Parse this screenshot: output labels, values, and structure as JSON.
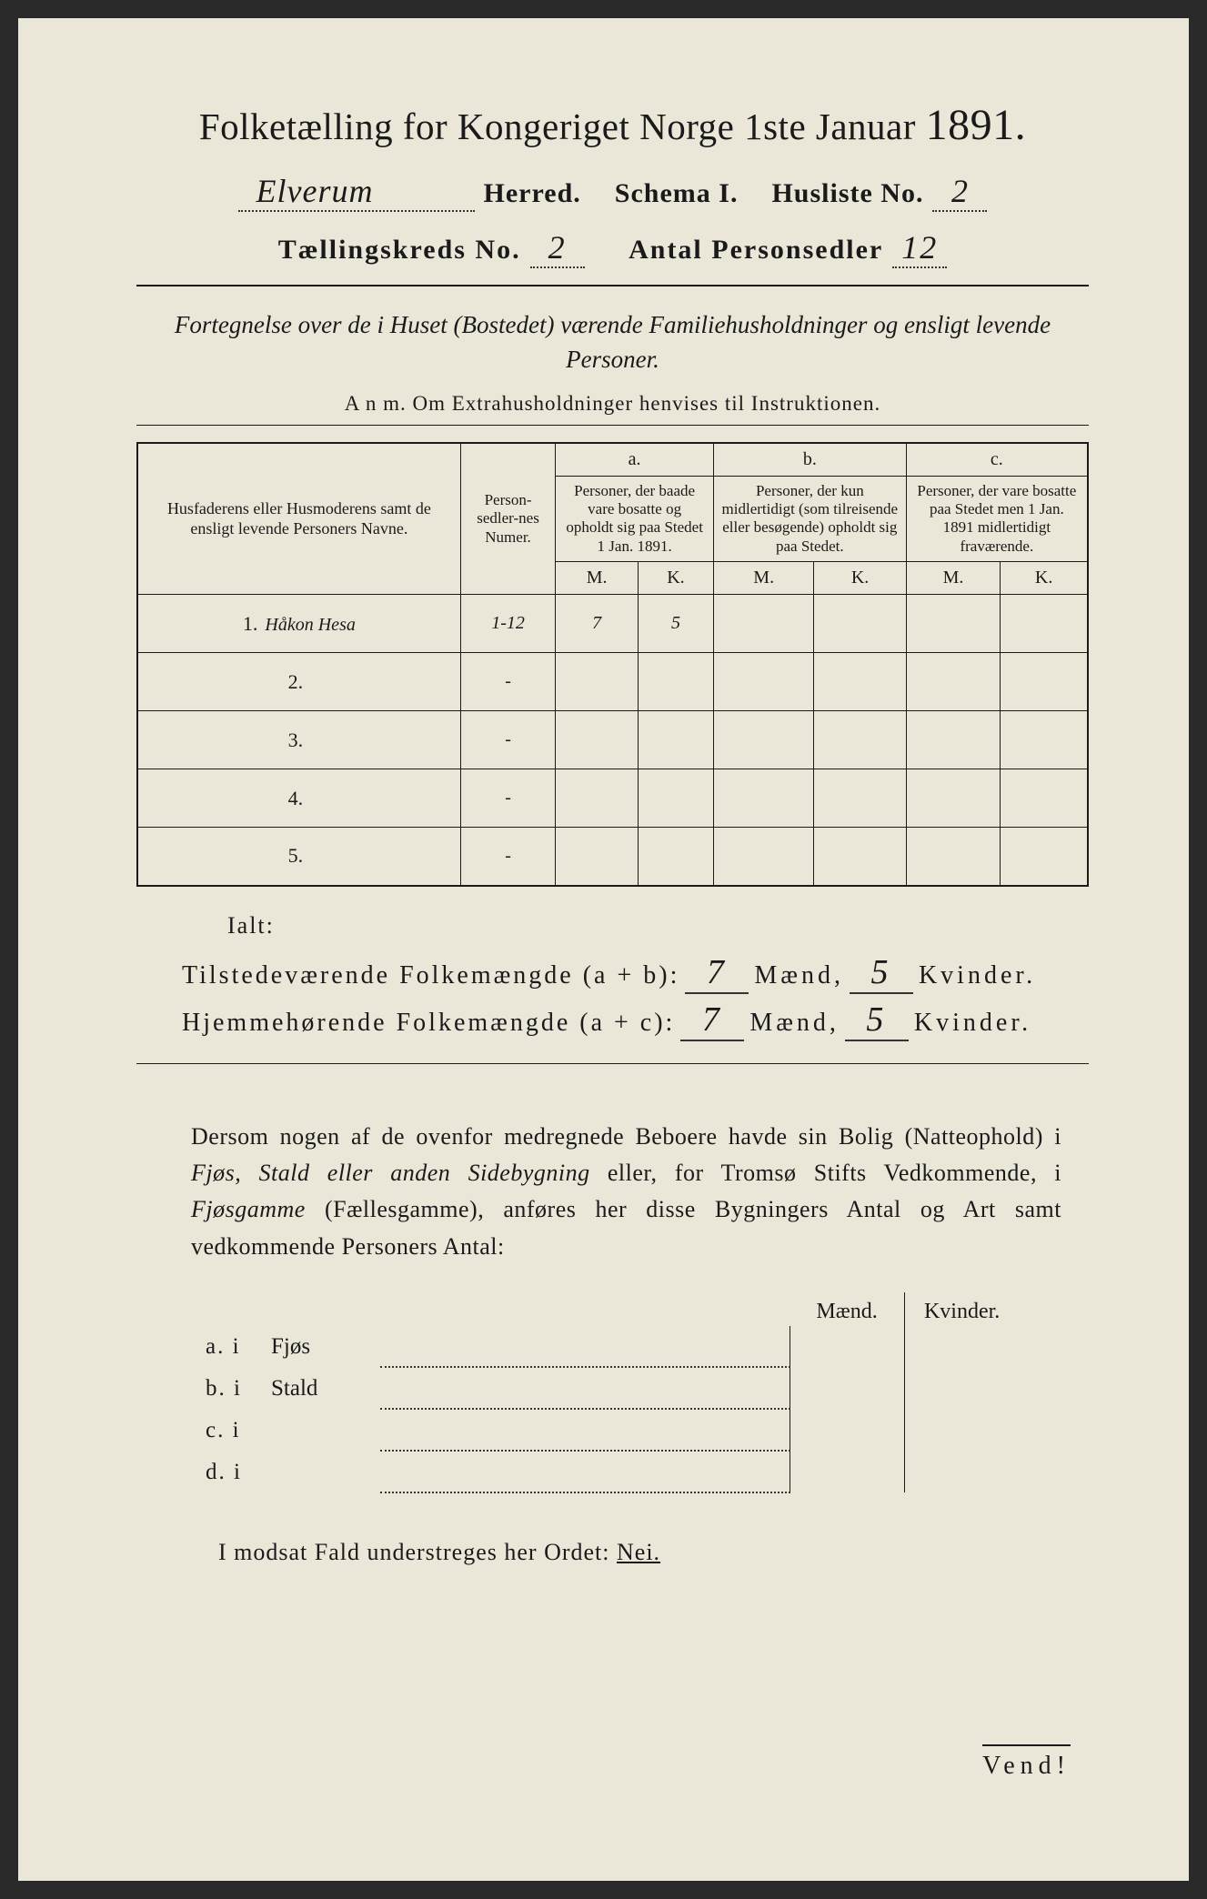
{
  "title": {
    "text_a": "Folketælling for Kongeriget Norge 1ste Januar",
    "year": "1891."
  },
  "header": {
    "herred_value": "Elverum",
    "herred_label": "Herred.",
    "schema_label": "Schema I.",
    "husliste_label": "Husliste No.",
    "husliste_value": "2",
    "kreds_label": "Tællingskreds No.",
    "kreds_value": "2",
    "personsedler_label": "Antal Personsedler",
    "personsedler_value": "12"
  },
  "description": "Fortegnelse over de i Huset (Bostedet) værende Familiehusholdninger og ensligt levende Personer.",
  "anm": "A n m.  Om Extrahusholdninger henvises til Instruktionen.",
  "table": {
    "col_name": "Husfaderens eller Husmoderens samt de ensligt levende Personers Navne.",
    "col_num": "Person-sedler-nes Numer.",
    "grp_a_label": "a.",
    "grp_a_text": "Personer, der baade vare bosatte og opholdt sig paa Stedet 1 Jan. 1891.",
    "grp_b_label": "b.",
    "grp_b_text": "Personer, der kun midlertidigt (som tilreisende eller besøgende) opholdt sig paa Stedet.",
    "grp_c_label": "c.",
    "grp_c_text": "Personer, der vare bosatte paa Stedet men 1 Jan. 1891 midlertidigt fraværende.",
    "m": "M.",
    "k": "K.",
    "rows": [
      {
        "n": "1.",
        "name": "Håkon Hesa",
        "num": "1-12",
        "a_m": "7",
        "a_k": "5",
        "b_m": "",
        "b_k": "",
        "c_m": "",
        "c_k": ""
      },
      {
        "n": "2.",
        "name": "",
        "num": "-",
        "a_m": "",
        "a_k": "",
        "b_m": "",
        "b_k": "",
        "c_m": "",
        "c_k": ""
      },
      {
        "n": "3.",
        "name": "",
        "num": "-",
        "a_m": "",
        "a_k": "",
        "b_m": "",
        "b_k": "",
        "c_m": "",
        "c_k": ""
      },
      {
        "n": "4.",
        "name": "",
        "num": "-",
        "a_m": "",
        "a_k": "",
        "b_m": "",
        "b_k": "",
        "c_m": "",
        "c_k": ""
      },
      {
        "n": "5.",
        "name": "",
        "num": "-",
        "a_m": "",
        "a_k": "",
        "b_m": "",
        "b_k": "",
        "c_m": "",
        "c_k": ""
      }
    ]
  },
  "totals": {
    "ialt": "Ialt:",
    "tilstede_label": "Tilstedeværende Folkemængde (a + b):",
    "hjemme_label": "Hjemmehørende Folkemængde (a + c):",
    "maend": "Mænd,",
    "kvinder": "Kvinder.",
    "tilstede_m": "7",
    "tilstede_k": "5",
    "hjemme_m": "7",
    "hjemme_k": "5"
  },
  "paragraph": {
    "p1": "Dersom nogen af de ovenfor medregnede Beboere havde sin Bolig (Natteophold) i ",
    "i1": "Fjøs, Stald eller anden Sidebygning",
    "p2": " eller, for Tromsø Stifts Vedkommende, i ",
    "i2": "Fjøsgamme",
    "p3": " (Fællesgamme), anføres her disse Bygningers Antal og Art samt vedkommende Personers Antal:"
  },
  "side_table": {
    "maend": "Mænd.",
    "kvinder": "Kvinder.",
    "rows": [
      {
        "lab": "a.  i",
        "kind": "Fjøs"
      },
      {
        "lab": "b.  i",
        "kind": "Stald"
      },
      {
        "lab": "c.  i",
        "kind": ""
      },
      {
        "lab": "d.  i",
        "kind": ""
      }
    ]
  },
  "nei_line": {
    "pre": "I modsat Fald understreges her Ordet: ",
    "word": "Nei."
  },
  "vend": "Vend!",
  "colors": {
    "page_bg": "#ebe7d8",
    "ink": "#1a1a1a",
    "outer_bg": "#2a2a2a"
  }
}
